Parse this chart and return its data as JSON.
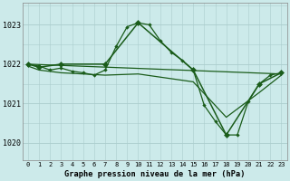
{
  "background_color": "#cceaea",
  "grid_color": "#aacccc",
  "line_color": "#1a5c1a",
  "title": "Graphe pression niveau de la mer (hPa)",
  "yticks": [
    1020,
    1021,
    1022,
    1023
  ],
  "ylim": [
    1019.55,
    1023.55
  ],
  "xlim": [
    -0.5,
    23.5
  ],
  "figsize": [
    3.2,
    2.0
  ],
  "dpi": 100,
  "series1_x": [
    0,
    1,
    2,
    3,
    4,
    5,
    6,
    7,
    8,
    9,
    10,
    11,
    12,
    13,
    14,
    15,
    16,
    17,
    18,
    19,
    20,
    21,
    22,
    23
  ],
  "series1_y": [
    1022.0,
    1021.95,
    1021.85,
    1021.9,
    1021.82,
    1021.78,
    1021.72,
    1021.85,
    1022.45,
    1022.95,
    1023.05,
    1023.0,
    1022.6,
    1022.3,
    1022.1,
    1021.85,
    1020.95,
    1020.55,
    1020.2,
    1020.2,
    1021.05,
    1021.5,
    1021.72,
    1021.78
  ],
  "series2_x": [
    0,
    1,
    3,
    7,
    10,
    15,
    18,
    21,
    23
  ],
  "series2_y": [
    1022.0,
    1021.92,
    1022.0,
    1022.0,
    1023.05,
    1021.85,
    1020.2,
    1021.5,
    1021.78
  ],
  "series3_x": [
    0,
    23
  ],
  "series3_y": [
    1022.0,
    1021.75
  ],
  "series4_x": [
    0,
    1,
    3,
    7,
    10,
    15,
    18,
    21,
    23
  ],
  "series4_y": [
    1021.95,
    1021.85,
    1021.78,
    1021.72,
    1021.75,
    1021.55,
    1020.65,
    1021.28,
    1021.72
  ]
}
